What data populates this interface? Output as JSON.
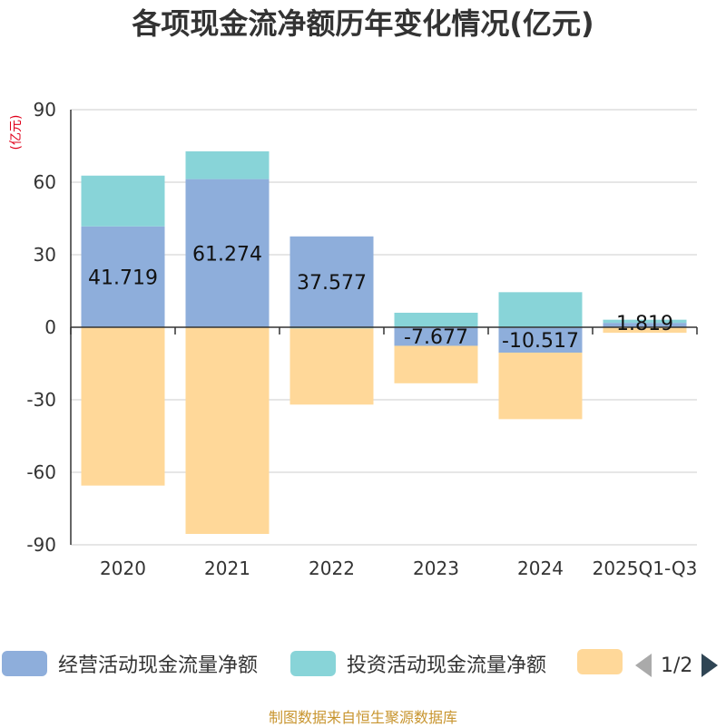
{
  "chart_data": {
    "type": "bar",
    "stacked": true,
    "title": "各项现金流净额历年变化情况(亿元)",
    "ylabel": "(亿元)",
    "ylim": [
      -90,
      90
    ],
    "yticks": [
      90,
      60,
      30,
      0,
      -30,
      -60,
      -90
    ],
    "categories": [
      "2020",
      "2021",
      "2022",
      "2023",
      "2024",
      "2025Q1-Q3"
    ],
    "series": [
      {
        "name": "经营活动现金流量净额",
        "color": "#8eaedb",
        "values": [
          41.719,
          61.274,
          37.577,
          -7.677,
          -10.517,
          1.819
        ]
      },
      {
        "name": "投资活动现金流量净额",
        "color": "#88d4d8",
        "values": [
          21.0,
          11.5,
          -0.5,
          6.0,
          14.5,
          1.3
        ]
      },
      {
        "name": "",
        "color": "#ffd899",
        "values": [
          -65.5,
          -85.5,
          -31.5,
          -15.5,
          -27.5,
          -2.3
        ]
      }
    ],
    "data_labels": [
      "41.719",
      "61.274",
      "37.577",
      "-7.677",
      "-10.517",
      "1.819"
    ]
  },
  "legend": {
    "items": [
      {
        "label": "经营活动现金流量净额",
        "color": "#8eaedb"
      },
      {
        "label": "投资活动现金流量净额",
        "color": "#88d4d8"
      },
      {
        "label": "",
        "color": "#ffd899"
      }
    ],
    "page_indicator": "1/2"
  },
  "source": "制图数据来自恒生聚源数据库"
}
